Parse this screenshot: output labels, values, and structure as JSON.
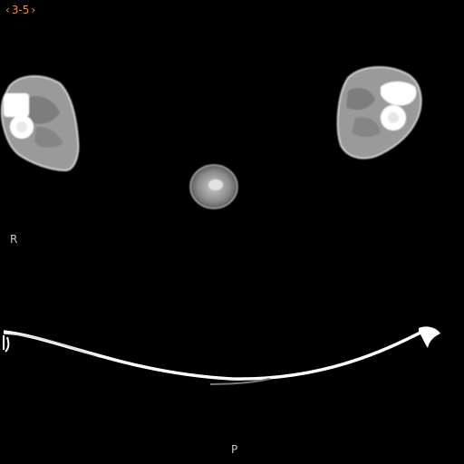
{
  "viewer": {
    "series_prev_icon": "chevron-left-icon",
    "series_next_icon": "chevron-right-icon",
    "series_index": "3-5",
    "orientation_left": "R",
    "orientation_bottom": "P"
  },
  "colors": {
    "background": "#000000",
    "overlay_nav": "#ff8c1a",
    "overlay_orientation": "#c8c8c8"
  }
}
